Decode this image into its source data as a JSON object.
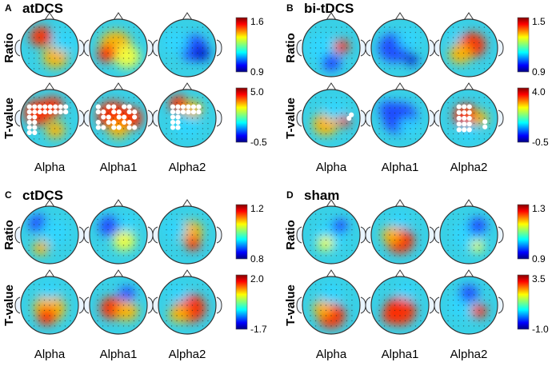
{
  "panels": [
    {
      "id": "A",
      "letter": "A",
      "title": "atDCS",
      "row_labels": [
        "Ratio",
        "T-value"
      ],
      "columns": [
        "Alpha",
        "Alpha1",
        "Alpha2"
      ],
      "colorbars": [
        {
          "max": "1.6",
          "min": "0.9"
        },
        {
          "max": "5.0",
          "min": "-0.5"
        }
      ]
    },
    {
      "id": "B",
      "letter": "B",
      "title": "bi-tDCS",
      "row_labels": [
        "Ratio",
        "T-value"
      ],
      "columns": [
        "Alpha",
        "Alpha1",
        "Alpha2"
      ],
      "colorbars": [
        {
          "max": "1.5",
          "min": "0.9"
        },
        {
          "max": "4.0",
          "min": "-0.5"
        }
      ]
    },
    {
      "id": "C",
      "letter": "C",
      "title": "ctDCS",
      "row_labels": [
        "Ratio",
        "T-value"
      ],
      "columns": [
        "Alpha",
        "Alpha1",
        "Alpha2"
      ],
      "colorbars": [
        {
          "max": "1.2",
          "min": "0.8"
        },
        {
          "max": "2.0",
          "min": "-1.7"
        }
      ]
    },
    {
      "id": "D",
      "letter": "D",
      "title": "sham",
      "row_labels": [
        "Ratio",
        "T-value"
      ],
      "columns": [
        "Alpha",
        "Alpha1",
        "Alpha2"
      ],
      "colorbars": [
        {
          "max": "1.3",
          "min": "0.9"
        },
        {
          "max": "3.5",
          "min": "-1.0"
        }
      ]
    }
  ]
}
